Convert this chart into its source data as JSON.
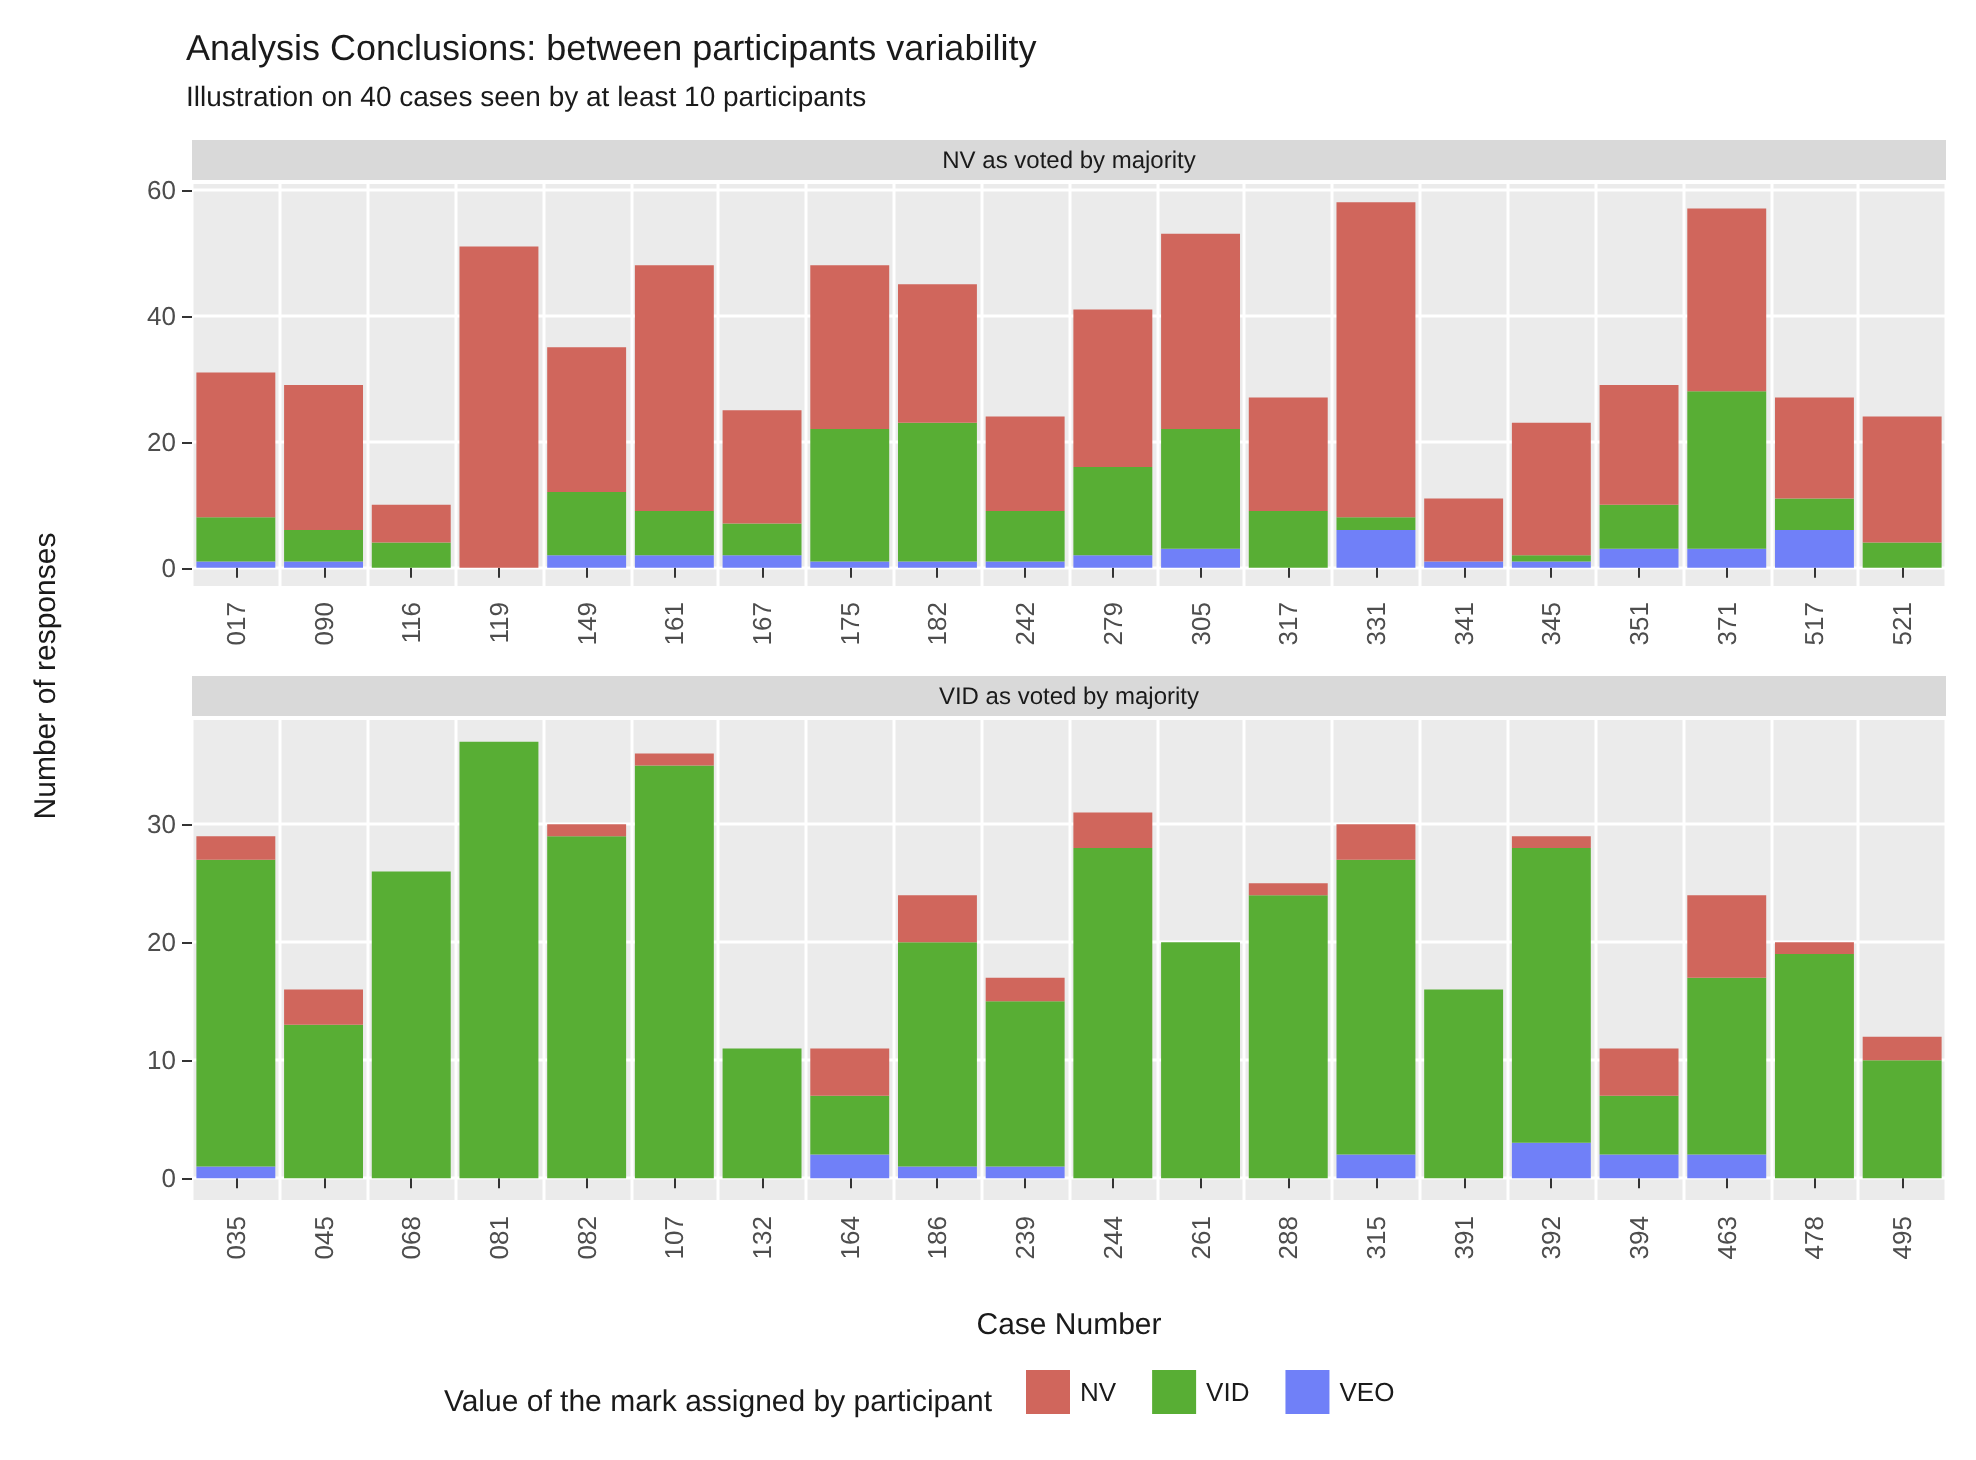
{
  "chart_data": [
    {
      "type": "bar",
      "title": "Analysis Conclusions: between participants variability",
      "subtitle": "Illustration on 40 cases seen by at least 10 participants",
      "ylabel": "Number of responses",
      "annotations": [
        "NV as voted by majority"
      ],
      "stacked": true,
      "grid": true,
      "categories": [
        "017",
        "090",
        "116",
        "119",
        "149",
        "161",
        "167",
        "175",
        "182",
        "242",
        "279",
        "305",
        "317",
        "331",
        "341",
        "345",
        "351",
        "371",
        "517",
        "521"
      ],
      "ylim": [
        -2.9,
        60.9
      ],
      "yticks": [
        0,
        20,
        40,
        60
      ],
      "series": [
        {
          "color": "#7080f8",
          "values": [
            1,
            1,
            0,
            0,
            2,
            2,
            2,
            1,
            1,
            1,
            2,
            3,
            0,
            6,
            1,
            1,
            3,
            3,
            6,
            0
          ]
        },
        {
          "color": "#58ae34",
          "values": [
            7,
            5,
            4,
            0,
            10,
            7,
            5,
            21,
            22,
            8,
            14,
            19,
            9,
            2,
            0,
            1,
            7,
            25,
            5,
            4
          ]
        },
        {
          "color": "#d0665c",
          "values": [
            23,
            23,
            6,
            51,
            23,
            39,
            18,
            26,
            22,
            15,
            25,
            31,
            18,
            50,
            10,
            21,
            19,
            29,
            16,
            20
          ]
        }
      ]
    },
    {
      "type": "bar",
      "xlabel": "Case Number",
      "annotations": [
        "VID as voted by majority"
      ],
      "legend_title": "Value of the mark assigned by participant",
      "legend": "bottom",
      "stacked": true,
      "grid": true,
      "categories": [
        "035",
        "045",
        "068",
        "081",
        "082",
        "107",
        "132",
        "164",
        "186",
        "239",
        "244",
        "261",
        "288",
        "315",
        "391",
        "392",
        "394",
        "463",
        "478",
        "495"
      ],
      "ylim": [
        -1.85,
        38.85
      ],
      "yticks": [
        0,
        10,
        20,
        30
      ],
      "series": [
        {
          "name": "VEO",
          "color": "#7080f8",
          "values": [
            1,
            0,
            0,
            0,
            0,
            0,
            0,
            2,
            1,
            1,
            0,
            0,
            0,
            2,
            0,
            3,
            2,
            2,
            0,
            0
          ]
        },
        {
          "name": "VID",
          "color": "#58ae34",
          "values": [
            26,
            13,
            26,
            37,
            29,
            35,
            11,
            5,
            19,
            14,
            28,
            20,
            24,
            25,
            16,
            25,
            5,
            15,
            19,
            10
          ]
        },
        {
          "name": "NV",
          "color": "#d0665c",
          "values": [
            2,
            3,
            0,
            0,
            1,
            1,
            0,
            4,
            4,
            2,
            3,
            0,
            1,
            3,
            0,
            1,
            4,
            7,
            1,
            2
          ]
        }
      ]
    }
  ]
}
